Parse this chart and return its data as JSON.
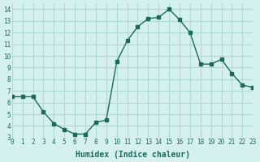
{
  "x": [
    0,
    1,
    2,
    3,
    4,
    5,
    6,
    7,
    8,
    9,
    10,
    11,
    12,
    13,
    14,
    15,
    16,
    17,
    18,
    19,
    20,
    21,
    22,
    23
  ],
  "y": [
    6.5,
    6.5,
    6.5,
    5.2,
    4.2,
    3.7,
    3.3,
    3.3,
    4.3,
    4.5,
    9.5,
    11.3,
    12.5,
    13.2,
    13.3,
    14.0,
    13.1,
    12.0,
    9.3,
    9.3,
    9.7,
    8.5,
    7.5,
    7.3
  ],
  "xlabel": "Humidex (Indice chaleur)",
  "xlim": [
    0,
    23
  ],
  "ylim": [
    3,
    14.5
  ],
  "yticks": [
    3,
    4,
    5,
    6,
    7,
    8,
    9,
    10,
    11,
    12,
    13,
    14
  ],
  "xticks": [
    0,
    1,
    2,
    3,
    4,
    5,
    6,
    7,
    8,
    9,
    10,
    11,
    12,
    13,
    14,
    15,
    16,
    17,
    18,
    19,
    20,
    21,
    22,
    23
  ],
  "line_color": "#1a6b5a",
  "marker": "s",
  "marker_size": 2.5,
  "bg_color": "#d5f0f0",
  "grid_color": "#b0d8d8",
  "tick_label_color": "#1a6b5a",
  "xlabel_color": "#1a6b5a"
}
